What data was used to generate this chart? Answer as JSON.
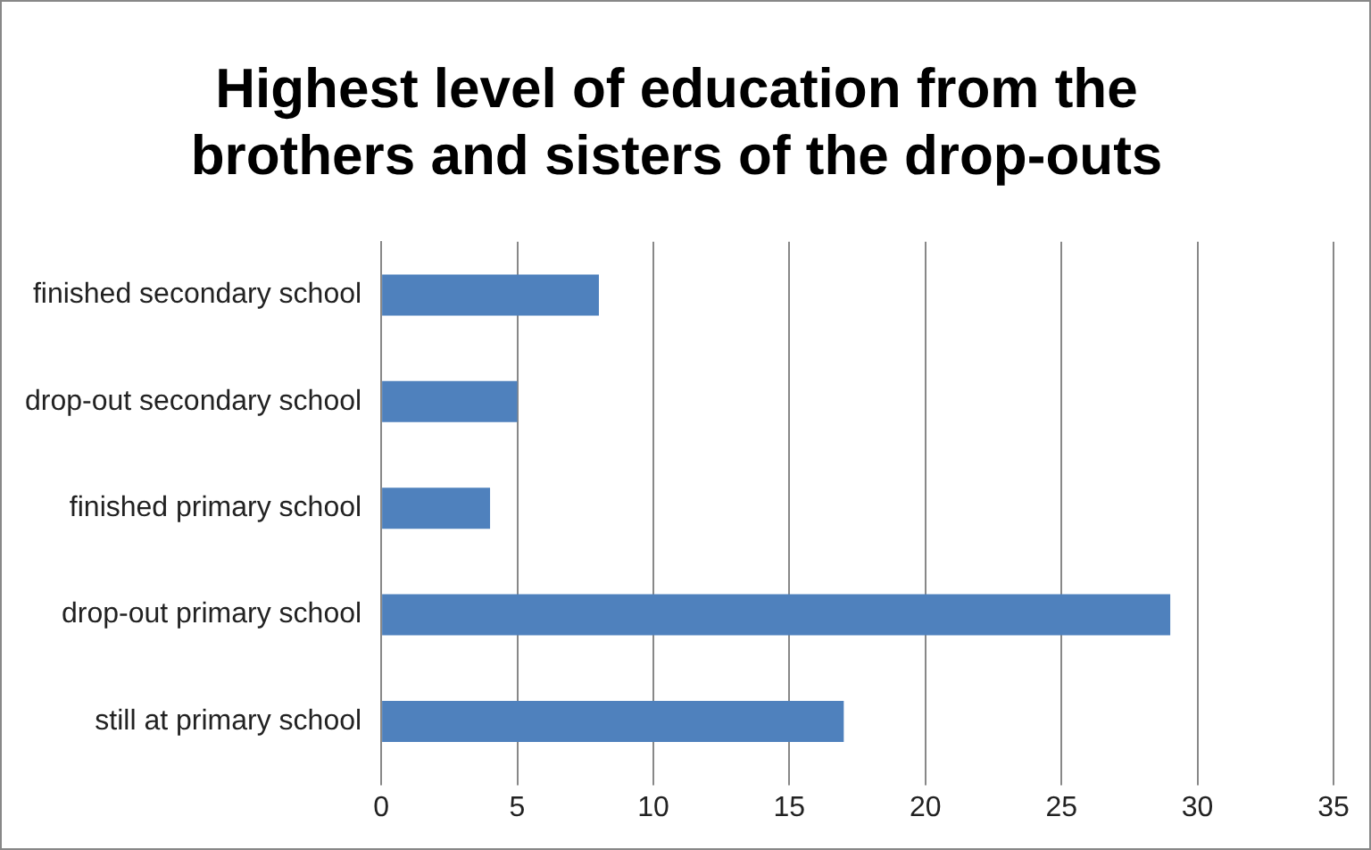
{
  "chart_data": {
    "type": "bar",
    "orientation": "horizontal",
    "title": "Highest level of education from the brothers and sisters of the drop-outs",
    "categories": [
      "finished secondary school",
      "drop-out secondary school",
      "finished primary school",
      "drop-out primary school",
      "still at primary school"
    ],
    "values": [
      8,
      5,
      4,
      29,
      17
    ],
    "color": "#4f81bd",
    "xlim": [
      0,
      35
    ],
    "xticks": [
      0,
      5,
      10,
      15,
      20,
      25,
      30,
      35
    ],
    "grid": "x",
    "legend": false
  }
}
